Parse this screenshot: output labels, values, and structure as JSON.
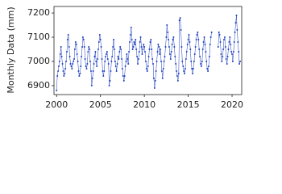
{
  "chart_data": {
    "type": "line",
    "y_label": "Monthly Data (mm)",
    "color": "#1f3fbf",
    "xlim": [
      1999.7,
      2021.1
    ],
    "ylim": [
      6863,
      7227
    ],
    "xticks": [
      2000,
      2005,
      2010,
      2015,
      2020
    ],
    "yticks": [
      6900,
      7000,
      7100,
      7200
    ],
    "x": [
      2000,
      2000.08,
      2000.17,
      2000.25,
      2000.33,
      2000.42,
      2000.5,
      2000.58,
      2000.67,
      2000.75,
      2000.83,
      2000.92,
      2001,
      2001.08,
      2001.17,
      2001.25,
      2001.33,
      2001.42,
      2001.5,
      2001.58,
      2001.67,
      2001.75,
      2001.83,
      2001.92,
      2002,
      2002.08,
      2002.17,
      2002.25,
      2002.33,
      2002.42,
      2002.5,
      2002.58,
      2002.67,
      2002.75,
      2002.83,
      2002.92,
      2003,
      2003.08,
      2003.17,
      2003.25,
      2003.33,
      2003.42,
      2003.5,
      2003.58,
      2003.67,
      2003.75,
      2003.83,
      2003.92,
      2004,
      2004.08,
      2004.17,
      2004.25,
      2004.33,
      2004.42,
      2004.5,
      2004.58,
      2004.67,
      2004.75,
      2004.83,
      2004.92,
      2005,
      2005.08,
      2005.17,
      2005.25,
      2005.33,
      2005.42,
      2005.5,
      2005.58,
      2005.67,
      2005.75,
      2005.83,
      2005.92,
      2006,
      2006.08,
      2006.17,
      2006.25,
      2006.33,
      2006.42,
      2006.5,
      2006.58,
      2006.67,
      2006.75,
      2006.83,
      2006.92,
      2007,
      2007.08,
      2007.17,
      2007.25,
      2007.33,
      2007.42,
      2007.5,
      2007.58,
      2007.67,
      2007.75,
      2007.83,
      2007.92,
      2008,
      2008.08,
      2008.17,
      2008.25,
      2008.33,
      2008.42,
      2008.5,
      2008.58,
      2008.67,
      2008.75,
      2008.83,
      2008.92,
      2009,
      2009.08,
      2009.17,
      2009.25,
      2009.33,
      2009.42,
      2009.5,
      2009.58,
      2009.67,
      2009.75,
      2009.83,
      2009.92,
      2010,
      2010.08,
      2010.17,
      2010.25,
      2010.33,
      2010.42,
      2010.5,
      2010.58,
      2010.67,
      2010.75,
      2010.83,
      2010.92,
      2011,
      2011.08,
      2011.17,
      2011.25,
      2011.33,
      2011.42,
      2011.5,
      2011.58,
      2011.67,
      2011.75,
      2011.83,
      2011.92,
      2012,
      2012.08,
      2012.17,
      2012.25,
      2012.33,
      2012.42,
      2012.5,
      2012.58,
      2012.67,
      2012.75,
      2012.83,
      2012.92,
      2013,
      2013.08,
      2013.17,
      2013.25,
      2013.33,
      2013.42,
      2013.5,
      2013.58,
      2013.67,
      2013.75,
      2013.83,
      2013.92,
      2014,
      2014.08,
      2014.17,
      2014.25,
      2014.33,
      2014.42,
      2014.5,
      2014.58,
      2014.67,
      2014.75,
      2014.83,
      2014.92,
      2015,
      2015.08,
      2015.17,
      2015.25,
      2015.33,
      2015.42,
      2015.5,
      2015.58,
      2015.67,
      2015.75,
      2015.83,
      2015.92,
      2016,
      2016.08,
      2016.17,
      2016.25,
      2016.33,
      2016.42,
      2016.5,
      2016.58,
      2016.67,
      2016.75,
      2016.83,
      2016.92,
      2017,
      2017.08,
      2017.17,
      2017.25,
      2017.33,
      2017.42,
      2017.5,
      2017.58,
      2017.67,
      2017.75,
      2017.83,
      2017.92,
      2018,
      2018.08,
      2018.17,
      2018.25,
      2018.33,
      2018.42,
      2018.5,
      2018.58,
      2018.67,
      2018.75,
      2018.83,
      2018.92,
      2019,
      2019.08,
      2019.17,
      2019.25,
      2019.33,
      2019.42,
      2019.5,
      2019.58,
      2019.67,
      2019.75,
      2019.83,
      2019.92,
      2020,
      2020.08,
      2020.17,
      2020.25,
      2020.33,
      2020.42,
      2020.5,
      2020.58,
      2020.67,
      2020.75,
      2020.83,
      2020.92
    ],
    "values": [
      6880,
      6940,
      6960,
      6980,
      7000,
      7030,
      7060,
      7020,
      6990,
      6960,
      6940,
      6950,
      6970,
      7000,
      7040,
      7090,
      7110,
      7060,
      7020,
      6990,
      6980,
      6970,
      6990,
      7000,
      7010,
      7050,
      7080,
      7070,
      7030,
      7000,
      6960,
      6940,
      6950,
      6980,
      7020,
      7060,
      7100,
      7090,
      7060,
      7010,
      6980,
      6970,
      6990,
      7040,
      7060,
      7050,
      7000,
      6960,
      6900,
      6930,
      6960,
      6990,
      7020,
      7040,
      7000,
      6980,
      7010,
      7050,
      7080,
      7110,
      7090,
      7060,
      7010,
      6960,
      6940,
      6960,
      7000,
      7020,
      7030,
      7040,
      7010,
      6990,
      6900,
      6920,
      6960,
      7000,
      7020,
      7060,
      7090,
      7050,
      7000,
      6980,
      6960,
      6990,
      7020,
      7010,
      7040,
      7060,
      7050,
      7010,
      6970,
      6940,
      6920,
      6940,
      6980,
      7000,
      7030,
      7010,
      6990,
      7040,
      7080,
      7110,
      7140,
      7090,
      7050,
      7060,
      7080,
      7070,
      7090,
      7050,
      7020,
      6990,
      7010,
      7040,
      7080,
      7100,
      7060,
      7030,
      7050,
      7070,
      7060,
      7040,
      7000,
      6970,
      6960,
      6980,
      7020,
      7050,
      7080,
      7090,
      7050,
      7010,
      6990,
      6930,
      6890,
      6920,
      6960,
      7000,
      7040,
      7070,
      7060,
      7030,
      7050,
      7000,
      6960,
      6930,
      6970,
      7000,
      7020,
      7060,
      7100,
      7150,
      7120,
      7090,
      7060,
      7030,
      7010,
      7040,
      7070,
      7090,
      7100,
      7060,
      7020,
      6990,
      6960,
      6940,
      6920,
      6950,
      7170,
      7180,
      7130,
      7060,
      7000,
      6980,
      6960,
      6950,
      6970,
      7010,
      7040,
      7070,
      7090,
      7110,
      7080,
      7050,
      7000,
      6970,
      6950,
      6970,
      7000,
      7030,
      7060,
      7090,
      7110,
      7120,
      7090,
      7050,
      7020,
      6990,
      6980,
      7000,
      7050,
      7080,
      7100,
      7070,
      7040,
      7000,
      6970,
      6960,
      6980,
      7020,
      7070,
      7100,
      7120,
      null,
      null,
      null,
      null,
      null,
      null,
      null,
      null,
      7060,
      7120,
      7110,
      7080,
      7030,
      7000,
      7020,
      7050,
      7090,
      7100,
      7060,
      7010,
      6990,
      7020,
      7050,
      7080,
      7100,
      7070,
      7040,
      7030,
      7000,
      7040,
      7080,
      7120,
      7160,
      7190,
      7130,
      7080,
      7040,
      6990,
      7000
    ]
  }
}
